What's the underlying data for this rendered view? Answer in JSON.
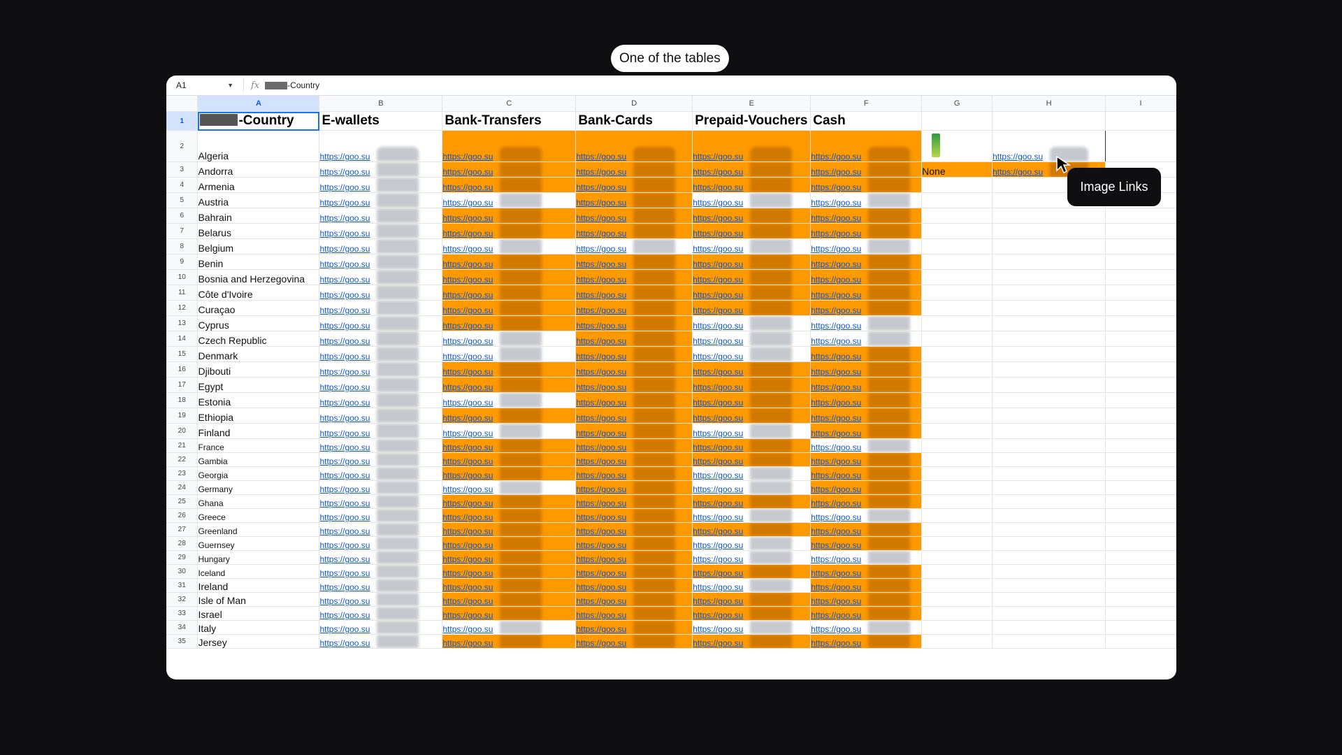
{
  "caption": "One of the tables",
  "tooltip": "Image Links",
  "formula_bar": {
    "cell_ref": "A1",
    "fx": "fx",
    "formula_suffix": "-Country"
  },
  "columns": [
    "A",
    "B",
    "C",
    "D",
    "E",
    "F",
    "G",
    "H",
    "I"
  ],
  "headers": {
    "a_suffix": "-Country",
    "b": "E-wallets",
    "c": "Bank-Transfers",
    "d": "Bank-Cards",
    "e": "Prepaid-Vouchers",
    "f": "Cash"
  },
  "link_text": "https://goo.su",
  "none_label": "None",
  "colors": {
    "highlight": "#ff9900",
    "link": "#1155cc",
    "selection": "#1a73e8"
  },
  "rows": [
    {
      "n": "2",
      "country": "Algeria",
      "c": true,
      "d": true,
      "e": true,
      "f": true
    },
    {
      "n": "3",
      "country": "Andorra",
      "c": true,
      "d": true,
      "e": true,
      "f": true
    },
    {
      "n": "4",
      "country": "Armenia",
      "c": true,
      "d": true,
      "e": true,
      "f": true
    },
    {
      "n": "5",
      "country": "Austria",
      "c": false,
      "d": true,
      "e": false,
      "f": false
    },
    {
      "n": "6",
      "country": "Bahrain",
      "c": true,
      "d": true,
      "e": true,
      "f": true
    },
    {
      "n": "7",
      "country": "Belarus",
      "c": true,
      "d": true,
      "e": true,
      "f": true
    },
    {
      "n": "8",
      "country": "Belgium",
      "c": false,
      "d": false,
      "e": false,
      "f": false
    },
    {
      "n": "9",
      "country": "Benin",
      "c": true,
      "d": true,
      "e": true,
      "f": true
    },
    {
      "n": "10",
      "country": "Bosnia and Herzegovina",
      "c": true,
      "d": true,
      "e": true,
      "f": true
    },
    {
      "n": "11",
      "country": "Côte d'Ivoire",
      "c": true,
      "d": true,
      "e": true,
      "f": true
    },
    {
      "n": "12",
      "country": "Curaçao",
      "c": true,
      "d": true,
      "e": true,
      "f": true
    },
    {
      "n": "13",
      "country": "Cyprus",
      "c": true,
      "d": true,
      "e": false,
      "f": false
    },
    {
      "n": "14",
      "country": "Czech Republic",
      "c": false,
      "d": true,
      "e": false,
      "f": false
    },
    {
      "n": "15",
      "country": "Denmark",
      "c": false,
      "d": true,
      "e": false,
      "f": true
    },
    {
      "n": "16",
      "country": "Djibouti",
      "c": true,
      "d": true,
      "e": true,
      "f": true
    },
    {
      "n": "17",
      "country": "Egypt",
      "c": true,
      "d": true,
      "e": true,
      "f": true
    },
    {
      "n": "18",
      "country": "Estonia",
      "c": false,
      "d": true,
      "e": true,
      "f": true
    },
    {
      "n": "19",
      "country": "Ethiopia",
      "c": true,
      "d": true,
      "e": true,
      "f": true
    },
    {
      "n": "20",
      "country": "Finland",
      "c": false,
      "d": true,
      "e": false,
      "f": true
    },
    {
      "n": "21",
      "country": "France",
      "c": true,
      "d": true,
      "e": true,
      "f": false
    },
    {
      "n": "22",
      "country": "Gambia",
      "c": true,
      "d": true,
      "e": true,
      "f": true
    },
    {
      "n": "23",
      "country": "Georgia",
      "c": true,
      "d": true,
      "e": false,
      "f": true
    },
    {
      "n": "24",
      "country": "Germany",
      "c": false,
      "d": true,
      "e": false,
      "f": true
    },
    {
      "n": "25",
      "country": "Ghana",
      "c": true,
      "d": true,
      "e": true,
      "f": true
    },
    {
      "n": "26",
      "country": "Greece",
      "c": true,
      "d": true,
      "e": false,
      "f": false
    },
    {
      "n": "27",
      "country": "Greenland",
      "c": true,
      "d": true,
      "e": true,
      "f": true
    },
    {
      "n": "28",
      "country": "Guernsey",
      "c": true,
      "d": true,
      "e": false,
      "f": true
    },
    {
      "n": "29",
      "country": "Hungary",
      "c": true,
      "d": true,
      "e": false,
      "f": false
    },
    {
      "n": "30",
      "country": "Iceland",
      "c": true,
      "d": true,
      "e": true,
      "f": true
    },
    {
      "n": "31",
      "country": "Ireland",
      "c": true,
      "d": true,
      "e": false,
      "f": true
    },
    {
      "n": "32",
      "country": "Isle of Man",
      "c": true,
      "d": true,
      "e": true,
      "f": true
    },
    {
      "n": "33",
      "country": "Israel",
      "c": true,
      "d": true,
      "e": true,
      "f": true
    },
    {
      "n": "34",
      "country": "Italy",
      "c": false,
      "d": true,
      "e": false,
      "f": false
    },
    {
      "n": "35",
      "country": "Jersey",
      "c": true,
      "d": true,
      "e": true,
      "f": true
    }
  ]
}
